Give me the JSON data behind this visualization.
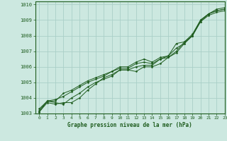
{
  "title": "Graphe pression niveau de la mer (hPa)",
  "background_color": "#cce8e0",
  "grid_color": "#aacfc8",
  "line_color": "#1e5c1e",
  "xlim": [
    -0.5,
    23
  ],
  "ylim": [
    1003,
    1010.2
  ],
  "yticks": [
    1003,
    1004,
    1005,
    1006,
    1007,
    1008,
    1009,
    1010
  ],
  "xticks": [
    0,
    1,
    2,
    3,
    4,
    5,
    6,
    7,
    8,
    9,
    10,
    11,
    12,
    13,
    14,
    15,
    16,
    17,
    18,
    19,
    20,
    21,
    22,
    23
  ],
  "series": [
    [
      1003.1,
      1003.8,
      1003.7,
      1003.6,
      1004.0,
      1004.3,
      1004.7,
      1005.0,
      1005.2,
      1005.4,
      1005.8,
      1005.8,
      1006.0,
      1006.1,
      1006.1,
      1006.5,
      1006.6,
      1007.0,
      1007.6,
      1008.1,
      1009.0,
      1009.4,
      1009.6,
      1009.7
    ],
    [
      1003.1,
      1003.7,
      1003.6,
      1003.7,
      1003.7,
      1004.0,
      1004.5,
      1004.9,
      1005.3,
      1005.5,
      1005.8,
      1005.8,
      1005.7,
      1006.0,
      1006.0,
      1006.2,
      1006.6,
      1006.9,
      1007.5,
      1008.0,
      1008.9,
      1009.3,
      1009.5,
      1009.6
    ],
    [
      1003.3,
      1003.8,
      1003.8,
      1004.3,
      1004.5,
      1004.8,
      1005.1,
      1005.3,
      1005.5,
      1005.7,
      1005.9,
      1005.9,
      1006.2,
      1006.3,
      1006.2,
      1006.5,
      1006.7,
      1007.5,
      1007.6,
      1008.0,
      1008.9,
      1009.4,
      1009.7,
      1009.8
    ],
    [
      1003.2,
      1003.8,
      1003.9,
      1004.1,
      1004.4,
      1004.7,
      1005.0,
      1005.2,
      1005.4,
      1005.7,
      1006.0,
      1006.0,
      1006.3,
      1006.5,
      1006.3,
      1006.6,
      1006.7,
      1007.2,
      1007.5,
      1008.0,
      1009.0,
      1009.4,
      1009.6,
      1009.7
    ]
  ]
}
